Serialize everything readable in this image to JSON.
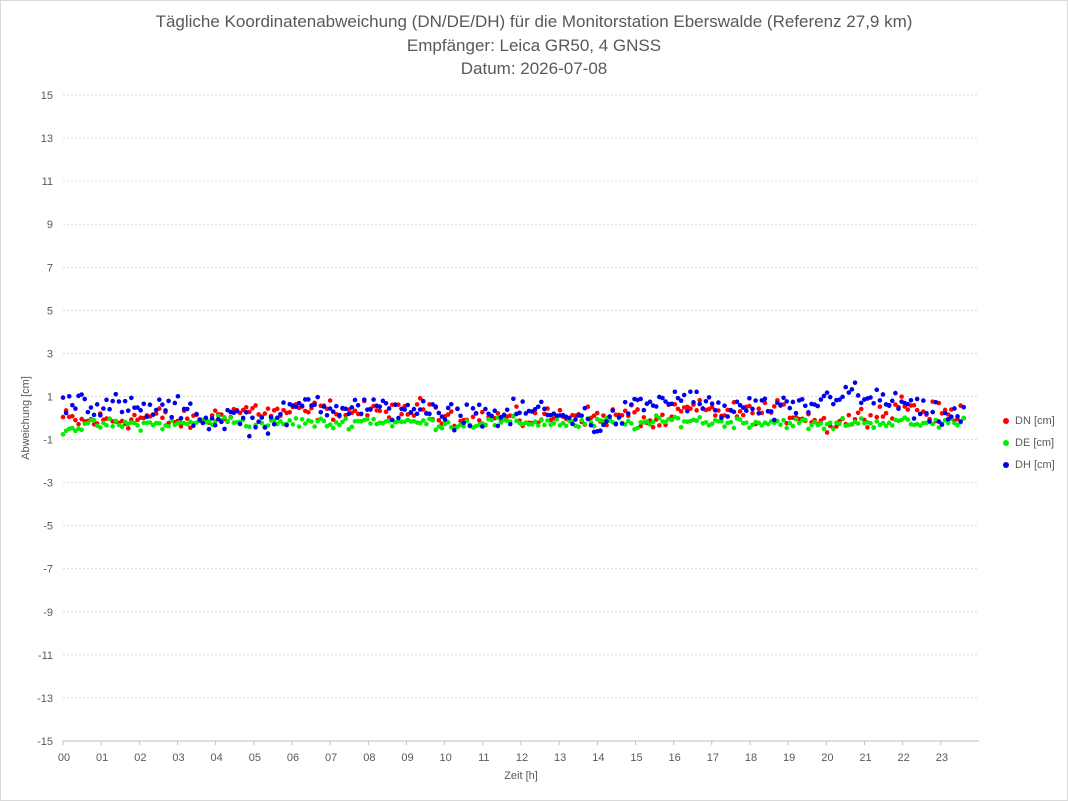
{
  "chart_data": {
    "type": "scatter",
    "title": "Tägliche Koordinatenabweichung (DN/DE/DH) für die Monitorstation Eberswalde (Referenz 27,9 km)",
    "subtitle": "Empfänger: Leica GR50, 4 GNSS",
    "date_line": "Datum: 2026-07-08",
    "xlabel": "Zeit [h]",
    "ylabel": "Abweichung [cm]",
    "xlim": [
      0,
      24
    ],
    "ylim": [
      -15,
      15
    ],
    "x_ticks": [
      "00",
      "01",
      "02",
      "03",
      "04",
      "05",
      "06",
      "07",
      "08",
      "09",
      "10",
      "11",
      "12",
      "13",
      "14",
      "15",
      "16",
      "17",
      "18",
      "19",
      "20",
      "21",
      "22",
      "23"
    ],
    "y_ticks": [
      15,
      13,
      11,
      9,
      7,
      5,
      3,
      1,
      -1,
      -3,
      -5,
      -7,
      -9,
      -11,
      -13,
      -15
    ],
    "grid": true,
    "legend_position": "right",
    "series": [
      {
        "name": "DN [cm]",
        "color": "#ff0000",
        "x": [
          0,
          0.5,
          1,
          1.5,
          2,
          2.5,
          3,
          3.5,
          4,
          4.5,
          5,
          5.5,
          6,
          6.5,
          7,
          7.5,
          8,
          8.5,
          9,
          9.5,
          10,
          10.5,
          11,
          11.5,
          12,
          12.5,
          13,
          13.5,
          14,
          14.5,
          15,
          15.5,
          16,
          16.5,
          17,
          17.5,
          18,
          18.5,
          19,
          19.5,
          20,
          20.5,
          21,
          21.5,
          22,
          22.5,
          23,
          23.5
        ],
        "y": [
          0.0,
          -0.2,
          -0.1,
          -0.1,
          0.0,
          0.1,
          -0.2,
          -0.1,
          0.1,
          0.3,
          0.4,
          0.2,
          0.3,
          0.3,
          0.4,
          0.3,
          0.3,
          0.2,
          0.3,
          0.5,
          0.2,
          0.1,
          0.0,
          0.0,
          -0.1,
          0.0,
          0.1,
          0.2,
          0.0,
          0.1,
          0.2,
          -0.3,
          0.2,
          0.4,
          0.3,
          0.3,
          0.2,
          0.4,
          0.2,
          0.1,
          -0.3,
          -0.1,
          0.1,
          0.3,
          0.7,
          0.3,
          0.2,
          0.2
        ]
      },
      {
        "name": "DE [cm]",
        "color": "#00ee00",
        "x": [
          0,
          0.5,
          1,
          1.5,
          2,
          2.5,
          3,
          3.5,
          4,
          4.5,
          5,
          5.5,
          6,
          6.5,
          7,
          7.5,
          8,
          8.5,
          9,
          9.5,
          10,
          10.5,
          11,
          11.5,
          12,
          12.5,
          13,
          13.5,
          14,
          14.5,
          15,
          15.5,
          16,
          16.5,
          17,
          17.5,
          18,
          18.5,
          19,
          19.5,
          20,
          20.5,
          21,
          21.5,
          22,
          22.5,
          23,
          23.5
        ],
        "y": [
          -0.5,
          -0.4,
          -0.3,
          -0.3,
          -0.3,
          -0.3,
          -0.3,
          -0.2,
          -0.1,
          -0.1,
          -0.2,
          -0.3,
          -0.2,
          -0.2,
          -0.3,
          -0.2,
          -0.1,
          -0.2,
          -0.2,
          -0.2,
          -0.3,
          -0.3,
          -0.2,
          -0.2,
          -0.2,
          -0.2,
          -0.2,
          -0.3,
          -0.2,
          -0.2,
          -0.3,
          -0.2,
          -0.1,
          -0.1,
          -0.2,
          -0.2,
          -0.2,
          -0.2,
          -0.2,
          -0.3,
          -0.4,
          -0.2,
          -0.2,
          -0.2,
          -0.2,
          -0.3,
          -0.2,
          -0.2
        ]
      },
      {
        "name": "DH [cm]",
        "color": "#0000ee",
        "x": [
          0,
          0.5,
          1,
          1.5,
          2,
          2.5,
          3,
          3.5,
          4,
          4.5,
          5,
          5.5,
          6,
          6.5,
          7,
          7.5,
          8,
          8.5,
          9,
          9.5,
          10,
          10.5,
          11,
          11.5,
          12,
          12.5,
          13,
          13.5,
          14,
          14.5,
          15,
          15.5,
          16,
          16.5,
          17,
          17.5,
          18,
          18.5,
          19,
          19.5,
          20,
          20.5,
          21,
          21.5,
          22,
          22.5,
          23,
          23.5
        ],
        "y": [
          0.8,
          0.9,
          0.5,
          0.6,
          0.3,
          0.5,
          0.4,
          0.1,
          -0.2,
          0.2,
          -0.3,
          -0.1,
          0.3,
          0.8,
          0.6,
          0.5,
          0.5,
          0.3,
          0.6,
          0.3,
          0.0,
          0.2,
          0.3,
          0.0,
          0.3,
          0.4,
          0.0,
          0.2,
          -0.4,
          0.0,
          0.5,
          0.7,
          0.9,
          0.8,
          0.5,
          0.3,
          0.6,
          0.3,
          0.4,
          0.5,
          0.9,
          1.3,
          0.8,
          0.9,
          0.6,
          0.2,
          0.1,
          0.1
        ]
      }
    ]
  }
}
